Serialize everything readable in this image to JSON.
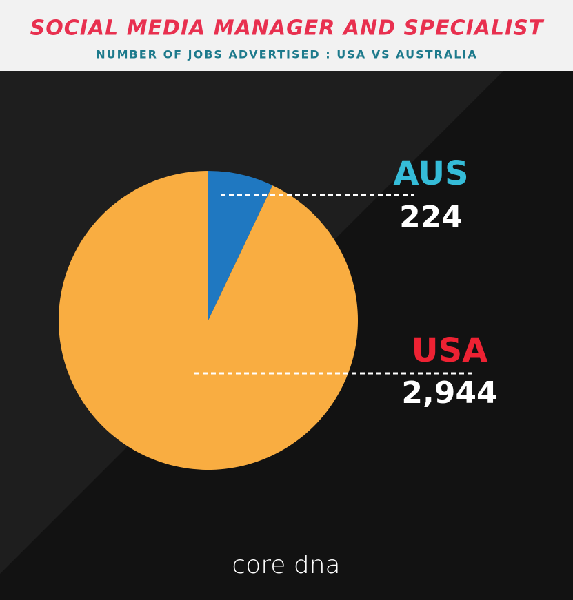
{
  "chart_data": {
    "type": "pie",
    "title": "SOCIAL MEDIA MANAGER AND SPECIALIST",
    "subtitle": "NUMBER OF JOBS ADVERTISED : USA VS AUSTRALIA",
    "categories": [
      "AUS",
      "USA"
    ],
    "values": [
      224,
      2944
    ],
    "value_labels": [
      "224",
      "2,944"
    ],
    "colors": [
      "#1f78c1",
      "#f9ad41"
    ],
    "label_colors": [
      "#35bcd8",
      "#ee2233"
    ],
    "logo": "core dna"
  }
}
